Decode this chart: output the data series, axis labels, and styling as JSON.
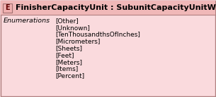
{
  "title": "FinisherCapacityUnit : SubunitCapacityUnitWKV",
  "e_label": "E",
  "section_label": "Enumerations",
  "enumerations": [
    "[Other]",
    "[Unknown]",
    "[TenThousandthsOfInches]",
    "[Micrometers]",
    "[Sheets]",
    "[Feet]",
    "[Meters]",
    "[Items]",
    "[Percent]"
  ],
  "bg_color": "#FADADD",
  "border_color": "#B08080",
  "header_bg": "#F0B8B8",
  "e_box_color": "#F0B0B0",
  "e_box_border": "#A07070",
  "title_fontsize": 8.0,
  "enum_fontsize": 6.5,
  "section_fontsize": 6.8,
  "e_fontsize": 7.0,
  "fig_width": 3.05,
  "fig_height": 1.38,
  "dpi": 100
}
